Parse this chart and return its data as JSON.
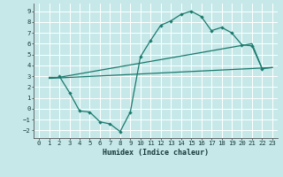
{
  "bg_color": "#c6e8e8",
  "grid_color": "#ffffff",
  "line_color": "#1a7a6e",
  "xlabel": "Humidex (Indice chaleur)",
  "xlim": [
    -0.5,
    23.5
  ],
  "ylim": [
    -2.7,
    9.7
  ],
  "xticks": [
    0,
    1,
    2,
    3,
    4,
    5,
    6,
    7,
    8,
    9,
    10,
    11,
    12,
    13,
    14,
    15,
    16,
    17,
    18,
    19,
    20,
    21,
    22,
    23
  ],
  "yticks": [
    -2,
    -1,
    0,
    1,
    2,
    3,
    4,
    5,
    6,
    7,
    8,
    9
  ],
  "line1_x": [
    2,
    3,
    4,
    5,
    6,
    7,
    8,
    9,
    10,
    11,
    12,
    13,
    14,
    15,
    16,
    17,
    18,
    19,
    20,
    21,
    22
  ],
  "line1_y": [
    3.0,
    1.5,
    -0.2,
    -0.3,
    -1.2,
    -1.4,
    -2.1,
    -0.3,
    4.8,
    6.3,
    7.7,
    8.1,
    8.7,
    9.0,
    8.5,
    7.2,
    7.5,
    7.0,
    5.9,
    5.8,
    3.7
  ],
  "line2_x": [
    1,
    2,
    21,
    22,
    23
  ],
  "line2_y": [
    2.9,
    2.9,
    6.0,
    3.7,
    3.8
  ],
  "line3_x": [
    1,
    23
  ],
  "line3_y": [
    2.8,
    3.8
  ],
  "marker_x": [
    2,
    3,
    4,
    5,
    6,
    7,
    8,
    9,
    10,
    11,
    12,
    13,
    14,
    15,
    16,
    17,
    18,
    19,
    20,
    21,
    22
  ],
  "marker_y": [
    3.0,
    1.5,
    -0.2,
    -0.3,
    -1.2,
    -1.4,
    -2.1,
    -0.3,
    4.8,
    6.3,
    7.7,
    8.1,
    8.7,
    9.0,
    8.5,
    7.2,
    7.5,
    7.0,
    5.9,
    5.8,
    3.7
  ]
}
